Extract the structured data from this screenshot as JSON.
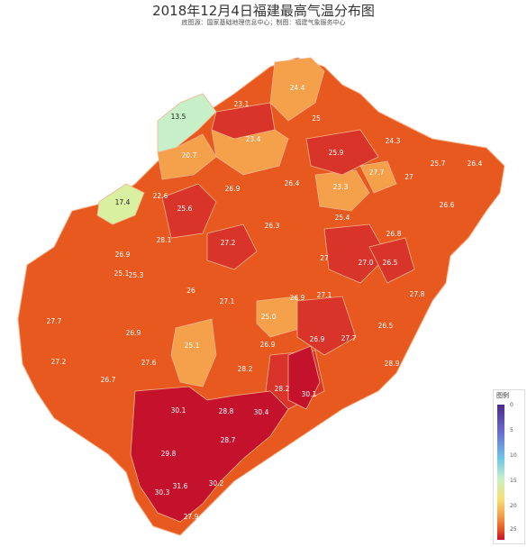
{
  "header": {
    "title": "2018年12月4日福建最高气温分布图",
    "subtitle": "底图源：国家基础地理信息中心；制图：福建气象服务中心"
  },
  "legend": {
    "title": "图例",
    "ticks": [
      "0",
      "5",
      "10",
      "15",
      "20",
      "25"
    ]
  },
  "colors": {
    "sea": "#ffffff",
    "province_bg": "#e8591f",
    "light_green": "#c8f0c8",
    "yellow_green": "#d9f0a0",
    "light_orange": "#f5a04a",
    "orange": "#ec6b28",
    "red": "#d9342a",
    "deep_red": "#c4112c",
    "border": "#f3b48c"
  },
  "stations": [
    {
      "value": "13.5"
    },
    {
      "value": "23.1"
    },
    {
      "value": "24.4"
    },
    {
      "value": "25"
    },
    {
      "value": "23.4"
    },
    {
      "value": "25.9"
    },
    {
      "value": "24.3"
    },
    {
      "value": "20.7"
    },
    {
      "value": "27"
    },
    {
      "value": "25.7"
    },
    {
      "value": "26.4"
    },
    {
      "value": "17.4"
    },
    {
      "value": "22.6"
    },
    {
      "value": "26.9"
    },
    {
      "value": "26.4"
    },
    {
      "value": "23.3"
    },
    {
      "value": "27.7"
    },
    {
      "value": "25.6"
    },
    {
      "value": "25.4"
    },
    {
      "value": "26.8"
    },
    {
      "value": "28.1"
    },
    {
      "value": "27.2"
    },
    {
      "value": "26.3"
    },
    {
      "value": "26.6"
    },
    {
      "value": "26.9"
    },
    {
      "value": "25.1"
    },
    {
      "value": "27"
    },
    {
      "value": "27.0"
    },
    {
      "value": "26.5"
    },
    {
      "value": "25.3"
    },
    {
      "value": "27.8"
    },
    {
      "value": "26"
    },
    {
      "value": "26.9"
    },
    {
      "value": "27.1"
    },
    {
      "value": "27.1"
    },
    {
      "value": "25.0"
    },
    {
      "value": "27.7"
    },
    {
      "value": "26.9"
    },
    {
      "value": "25.1"
    },
    {
      "value": "26.5"
    },
    {
      "value": "27.6"
    },
    {
      "value": "27.7"
    },
    {
      "value": "26.9"
    },
    {
      "value": "26.9"
    },
    {
      "value": "27.2"
    },
    {
      "value": "28.9"
    },
    {
      "value": "26.7"
    },
    {
      "value": "28.2"
    },
    {
      "value": "30.1"
    },
    {
      "value": "28.8"
    },
    {
      "value": "30.4"
    },
    {
      "value": "30.1"
    },
    {
      "value": "28.2"
    },
    {
      "value": "28.7"
    },
    {
      "value": "29.8"
    },
    {
      "value": "31.6"
    },
    {
      "value": "30.2"
    },
    {
      "value": "30.3"
    },
    {
      "value": "27.9"
    }
  ]
}
